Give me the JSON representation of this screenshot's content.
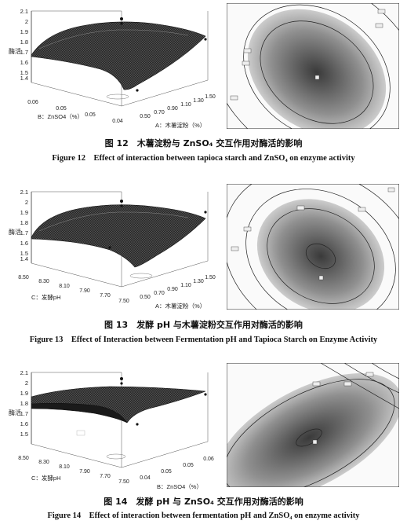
{
  "figures": [
    {
      "surface": {
        "z_label": "酶活",
        "z_ticks": [
          "2.1",
          "2",
          "1.9",
          "1.8",
          "1.7",
          "1.6",
          "1.5",
          "1.4"
        ],
        "axis_left_label": "B：ZnSO4（%）",
        "axis_left_ticks": [
          "0.06",
          "0.05",
          "0.05",
          "0.04"
        ],
        "axis_right_label": "A：木薯淀粉（%）",
        "axis_right_ticks": [
          "0.50",
          "0.70",
          "0.90",
          "1.10",
          "1.30",
          "1.50"
        ]
      },
      "caption_cn": "图 12　木薯淀粉与 ZnSO₄ 交互作用对酶活的影响",
      "caption_en": "Figure 12　Effect of interaction between tapioca starch and ZnSO₄ on enzyme activity"
    },
    {
      "surface": {
        "z_label": "酶活",
        "z_ticks": [
          "2.1",
          "2",
          "1.9",
          "1.8",
          "1.7",
          "1.6",
          "1.5",
          "1.4"
        ],
        "axis_left_label": "C：发酵pH",
        "axis_left_ticks": [
          "8.50",
          "8.30",
          "8.10",
          "7.90",
          "7.70",
          "7.50"
        ],
        "axis_right_label": "A：木薯淀粉（%）",
        "axis_right_ticks": [
          "0.50",
          "0.70",
          "0.90",
          "1.10",
          "1.30",
          "1.50"
        ]
      },
      "caption_cn": "图 13　发酵 pH 与木薯淀粉交互作用对酶活的影响",
      "caption_en": "Figure 13　Effect of Interaction between Fermentation pH and Tapioca Starch on Enzyme Activity"
    },
    {
      "surface": {
        "z_label": "酶活",
        "z_ticks": [
          "2.1",
          "2",
          "1.9",
          "1.8",
          "1.7",
          "1.6",
          "1.5"
        ],
        "axis_left_label": "C：发酵pH",
        "axis_left_ticks": [
          "8.50",
          "8.30",
          "8.10",
          "7.90",
          "7.70",
          "7.50"
        ],
        "axis_right_label": "B：ZnSO4（%）",
        "axis_right_ticks": [
          "0.04",
          "0.05",
          "0.05",
          "0.06"
        ]
      },
      "caption_cn": "图 14　发酵 pH 与 ZnSO₄ 交互作用对酶活的影响",
      "caption_en": "Figure 14　Effect of interaction between fermentation pH and ZnSO₄ on enzyme activity"
    }
  ]
}
